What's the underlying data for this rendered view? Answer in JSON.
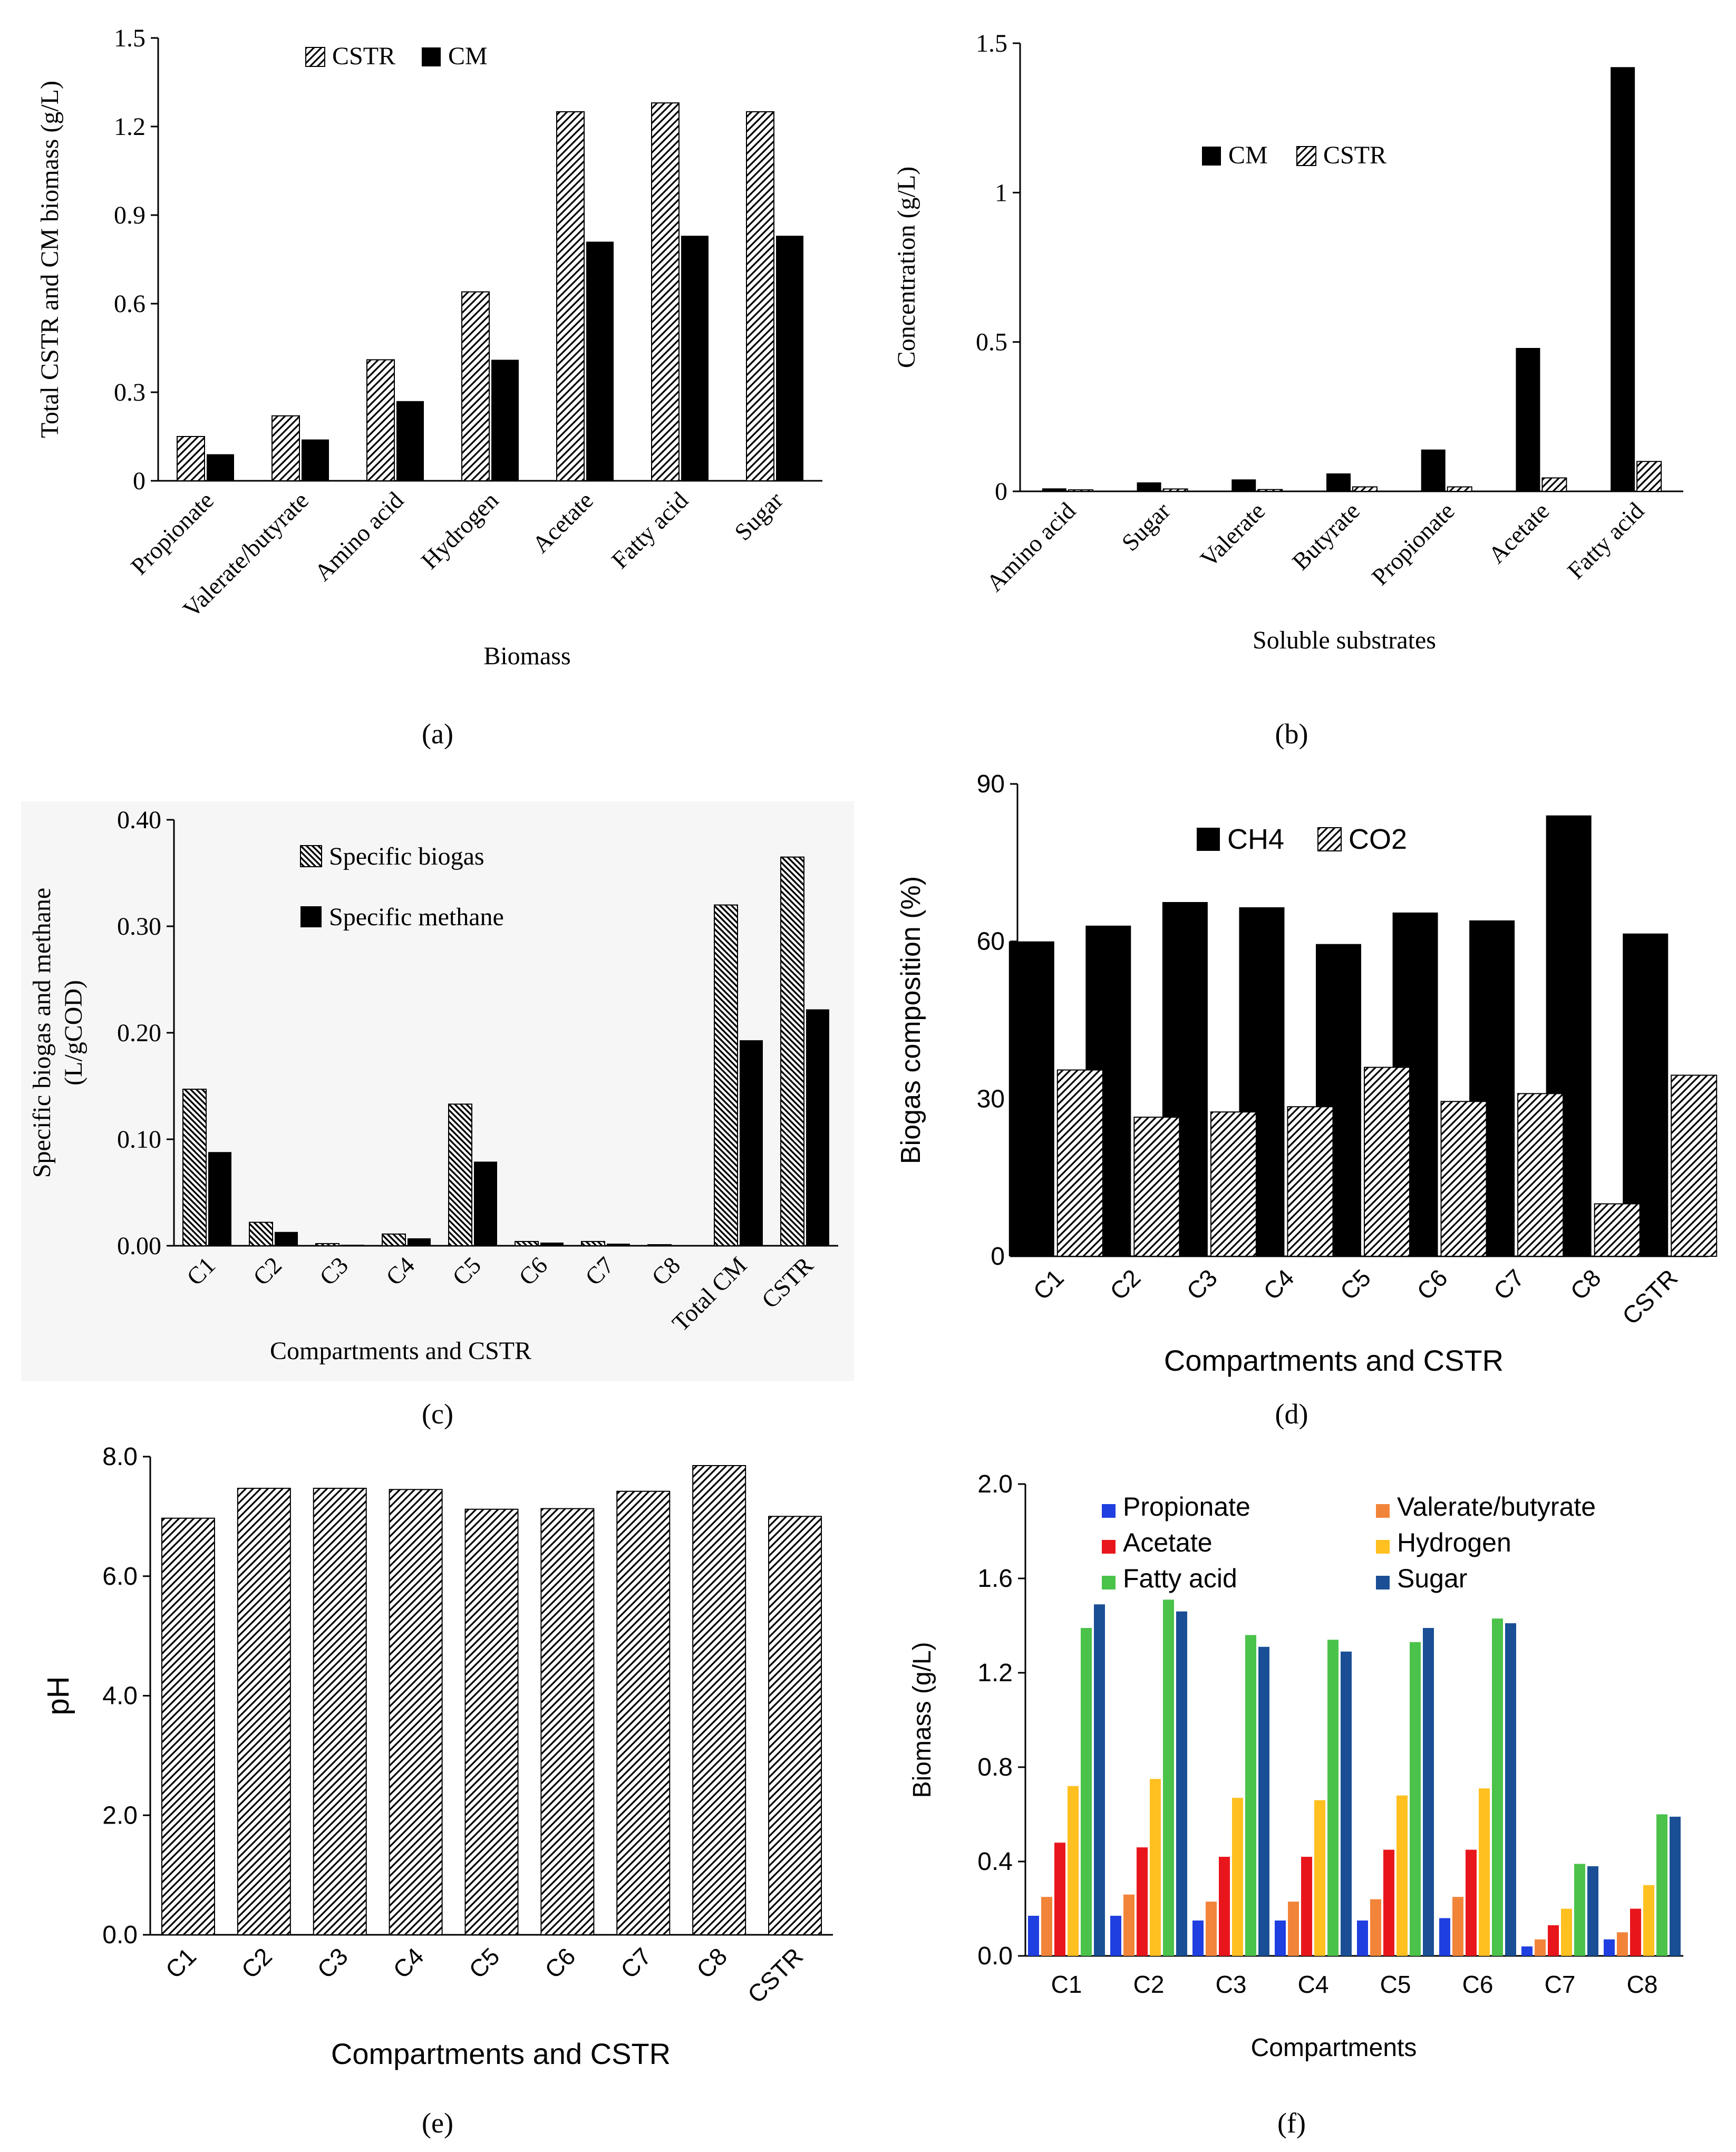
{
  "panels": [
    {
      "id": "a",
      "panel_label": "(a)",
      "chart_data": {
        "type": "bar",
        "categories": [
          "Propionate",
          "Valerate/butyrate",
          "Amino acid",
          "Hydrogen",
          "Acetate",
          "Fatty acid",
          "Sugar"
        ],
        "series": [
          {
            "name": "CSTR",
            "values": [
              0.15,
              0.22,
              0.41,
              0.64,
              1.25,
              1.28,
              1.25
            ],
            "fill": "hatch-light"
          },
          {
            "name": "CM",
            "values": [
              0.09,
              0.14,
              0.27,
              0.41,
              0.81,
              0.83,
              0.83
            ],
            "fill": "#000000"
          }
        ],
        "ylim": [
          0,
          1.5
        ],
        "yticks": [
          "0",
          "0.3",
          "0.6",
          "0.9",
          "1.2",
          "1.5"
        ],
        "ylabel": "Total CSTR and CM biomass (g/L)",
        "xlabel": "Biomass",
        "legend_placement": "top",
        "grid": false
      }
    },
    {
      "id": "b",
      "panel_label": "(b)",
      "chart_data": {
        "type": "bar",
        "categories": [
          "Amino acid",
          "Sugar",
          "Valerate",
          "Butyrate",
          "Propionate",
          "Acetate",
          "Fatty acid"
        ],
        "series": [
          {
            "name": "CM",
            "values": [
              0.01,
              0.03,
              0.04,
              0.06,
              0.14,
              0.48,
              1.42
            ],
            "fill": "#000000"
          },
          {
            "name": "CSTR",
            "values": [
              0.005,
              0.008,
              0.006,
              0.015,
              0.015,
              0.045,
              0.1
            ],
            "fill": "hatch-light"
          }
        ],
        "ylim": [
          0,
          1.5
        ],
        "yticks": [
          "0",
          "0.5",
          "1",
          "1.5"
        ],
        "ylabel": "Concentration (g/L)",
        "xlabel": "Soluble substrates",
        "legend_placement": "center",
        "grid": false
      }
    },
    {
      "id": "c",
      "panel_label": "(c)",
      "chart_data": {
        "type": "bar",
        "categories": [
          "C1",
          "C2",
          "C3",
          "C4",
          "C5",
          "C6",
          "C7",
          "C8",
          "Total CM",
          "CSTR"
        ],
        "series": [
          {
            "name": "Specific biogas",
            "values": [
              0.147,
              0.022,
              0.002,
              0.011,
              0.133,
              0.004,
              0.004,
              0.001,
              0.32,
              0.365
            ],
            "fill": "hatch-dense"
          },
          {
            "name": "Specific methane",
            "values": [
              0.088,
              0.013,
              0.001,
              0.007,
              0.079,
              0.003,
              0.002,
              0.0005,
              0.193,
              0.222
            ],
            "fill": "#000000"
          }
        ],
        "ylim": [
          0,
          0.4
        ],
        "yticks": [
          "0.00",
          "0.10",
          "0.20",
          "0.30",
          "0.40"
        ],
        "ylabel": "Specific biogas and methane (L/gCOD)",
        "ylabel_lines": [
          "Specific biogas and methane",
          "(L/gCOD)"
        ],
        "xlabel": "Compartments and CSTR",
        "legend_placement": "top-center",
        "grid": false
      }
    },
    {
      "id": "d",
      "panel_label": "(d)",
      "chart_data": {
        "type": "bar",
        "categories": [
          "C1",
          "C2",
          "C3",
          "C4",
          "C5",
          "C6",
          "C7",
          "C8",
          "CSTR"
        ],
        "series": [
          {
            "name": "CH4",
            "values": [
              60,
              63,
              67.5,
              66.5,
              59.5,
              65.5,
              64,
              84,
              61.5
            ],
            "fill": "#000000"
          },
          {
            "name": "CO2",
            "values": [
              35.5,
              26.5,
              27.5,
              28.5,
              36,
              29.5,
              31,
              10,
              34.5
            ],
            "fill": "hatch-light"
          }
        ],
        "ylim": [
          0,
          90
        ],
        "yticks": [
          "0",
          "30",
          "60",
          "90"
        ],
        "ylabel": "Biogas composition (%)",
        "xlabel": "Compartments and CSTR",
        "legend_placement": "top-left",
        "grid": false
      }
    },
    {
      "id": "e",
      "panel_label": "(e)",
      "chart_data": {
        "type": "bar",
        "categories": [
          "C1",
          "C2",
          "C3",
          "C4",
          "C5",
          "C6",
          "C7",
          "C8",
          "CSTR"
        ],
        "series": [
          {
            "name": "",
            "values": [
              6.97,
              7.47,
              7.47,
              7.45,
              7.12,
              7.13,
              7.42,
              7.85,
              7.0
            ],
            "fill": "hatch-light"
          }
        ],
        "ylim": [
          0,
          8
        ],
        "yticks": [
          "0.0",
          "2.0",
          "4.0",
          "6.0",
          "8.0"
        ],
        "ylabel": "pH",
        "xlabel": "Compartments and CSTR",
        "grid": false
      }
    },
    {
      "id": "f",
      "panel_label": "(f)",
      "chart_data": {
        "type": "bar",
        "categories": [
          "C1",
          "C2",
          "C3",
          "C4",
          "C5",
          "C6",
          "C7",
          "C8"
        ],
        "series": [
          {
            "name": "Propionate",
            "values": [
              0.17,
              0.17,
              0.15,
              0.15,
              0.15,
              0.16,
              0.04,
              0.07
            ],
            "fill": "#1f3fe0"
          },
          {
            "name": "Valerate/butyrate",
            "values": [
              0.25,
              0.26,
              0.23,
              0.23,
              0.24,
              0.25,
              0.07,
              0.1
            ],
            "fill": "#f2843a"
          },
          {
            "name": "Acetate",
            "values": [
              0.48,
              0.46,
              0.42,
              0.42,
              0.45,
              0.45,
              0.13,
              0.2
            ],
            "fill": "#e8161c"
          },
          {
            "name": "Hydrogen",
            "values": [
              0.72,
              0.75,
              0.67,
              0.66,
              0.68,
              0.71,
              0.2,
              0.3
            ],
            "fill": "#ffc020"
          },
          {
            "name": "Fatty acid",
            "values": [
              1.39,
              1.51,
              1.36,
              1.34,
              1.33,
              1.43,
              0.39,
              0.6
            ],
            "fill": "#4bc24a"
          },
          {
            "name": "Sugar",
            "values": [
              1.49,
              1.46,
              1.31,
              1.29,
              1.39,
              1.41,
              0.38,
              0.59
            ],
            "fill": "#1a4f96"
          }
        ],
        "ylim": [
          0,
          2.0
        ],
        "yticks": [
          "0.0",
          "0.4",
          "0.8",
          "1.2",
          "1.6",
          "2.0"
        ],
        "ylabel": "Biomass (g/L)",
        "xlabel": "Compartments",
        "legend_placement": "top",
        "grid": false
      }
    }
  ]
}
